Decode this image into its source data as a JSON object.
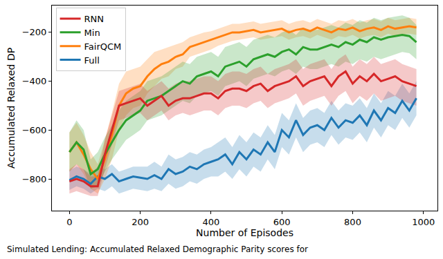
{
  "chart_data": {
    "type": "line",
    "x_label": "Number of Episodes",
    "y_label": "Accumulated Relaxed DP",
    "annotations": [
      {
        "text": "Simulated Lending: Accumulated Relaxed Demographic Parity scores for"
      }
    ],
    "xlim": [
      -49.5,
      1039.5
    ],
    "xticks": [
      0,
      200,
      400,
      600,
      800,
      1000
    ],
    "ylim": [
      -930,
      -90
    ],
    "yticks": [
      -800,
      -600,
      -400,
      -200
    ],
    "grid": false,
    "legend": "upper left",
    "x": [
      0,
      20,
      40,
      60,
      80,
      100,
      120,
      140,
      160,
      180,
      200,
      220,
      240,
      260,
      280,
      300,
      320,
      340,
      360,
      380,
      400,
      420,
      440,
      460,
      480,
      500,
      520,
      540,
      560,
      580,
      600,
      620,
      640,
      660,
      680,
      700,
      720,
      740,
      760,
      780,
      800,
      820,
      840,
      860,
      880,
      900,
      920,
      940,
      960,
      980
    ],
    "series": [
      {
        "name": "Full",
        "color": "#1f77b4",
        "values": [
          -805,
          -790,
          -800,
          -820,
          -790,
          -800,
          -780,
          -810,
          -800,
          -790,
          -795,
          -800,
          -785,
          -800,
          -760,
          -780,
          -770,
          -750,
          -760,
          -740,
          -730,
          -720,
          -700,
          -740,
          -690,
          -720,
          -680,
          -700,
          -650,
          -690,
          -600,
          -630,
          -560,
          -620,
          -590,
          -580,
          -600,
          -550,
          -590,
          -560,
          -570,
          -540,
          -580,
          -520,
          -560,
          -510,
          -530,
          -480,
          -520,
          -470
        ],
        "lower": [
          -845,
          -830,
          -840,
          -860,
          -840,
          -850,
          -830,
          -860,
          -850,
          -840,
          -845,
          -850,
          -840,
          -850,
          -820,
          -840,
          -830,
          -810,
          -820,
          -800,
          -790,
          -790,
          -770,
          -800,
          -760,
          -790,
          -750,
          -770,
          -720,
          -760,
          -670,
          -700,
          -630,
          -690,
          -660,
          -650,
          -670,
          -620,
          -660,
          -630,
          -640,
          -610,
          -650,
          -590,
          -630,
          -580,
          -600,
          -550,
          -590,
          -540
        ],
        "upper": [
          -765,
          -750,
          -760,
          -780,
          -750,
          -760,
          -740,
          -770,
          -760,
          -750,
          -750,
          -750,
          -730,
          -750,
          -700,
          -720,
          -710,
          -690,
          -700,
          -680,
          -670,
          -650,
          -630,
          -670,
          -620,
          -650,
          -610,
          -630,
          -580,
          -620,
          -530,
          -560,
          -490,
          -550,
          -520,
          -510,
          -530,
          -480,
          -520,
          -490,
          -500,
          -470,
          -510,
          -450,
          -490,
          -440,
          -460,
          -410,
          -450,
          -400
        ]
      },
      {
        "name": "FairQCM",
        "color": "#ff7f0e",
        "values": [
          -690,
          -650,
          -700,
          -760,
          -800,
          -720,
          -620,
          -500,
          -450,
          -430,
          -420,
          -380,
          -350,
          -330,
          -320,
          -300,
          -290,
          -260,
          -250,
          -240,
          -230,
          -220,
          -210,
          -200,
          -200,
          -195,
          -190,
          -200,
          -195,
          -190,
          -185,
          -200,
          -190,
          -185,
          -195,
          -180,
          -190,
          -200,
          -185,
          -190,
          -180,
          -195,
          -185,
          -180,
          -190,
          -175,
          -185,
          -180,
          -175,
          -180
        ],
        "lower": [
          -770,
          -740,
          -780,
          -840,
          -860,
          -800,
          -720,
          -600,
          -540,
          -510,
          -500,
          -450,
          -420,
          -390,
          -380,
          -350,
          -340,
          -300,
          -290,
          -280,
          -270,
          -255,
          -245,
          -235,
          -230,
          -225,
          -220,
          -230,
          -225,
          -220,
          -215,
          -230,
          -220,
          -215,
          -225,
          -210,
          -220,
          -230,
          -215,
          -220,
          -210,
          -225,
          -215,
          -210,
          -220,
          -205,
          -215,
          -210,
          -205,
          -210
        ],
        "upper": [
          -610,
          -570,
          -620,
          -690,
          -740,
          -640,
          -530,
          -410,
          -360,
          -350,
          -340,
          -310,
          -280,
          -270,
          -260,
          -250,
          -240,
          -220,
          -210,
          -200,
          -195,
          -185,
          -175,
          -165,
          -165,
          -160,
          -155,
          -165,
          -160,
          -155,
          -150,
          -165,
          -155,
          -150,
          -160,
          -145,
          -155,
          -165,
          -150,
          -155,
          -145,
          -160,
          -150,
          -145,
          -155,
          -140,
          -150,
          -145,
          -140,
          -145
        ]
      },
      {
        "name": "Min",
        "color": "#2ca02c",
        "values": [
          -690,
          -650,
          -680,
          -780,
          -760,
          -700,
          -650,
          -600,
          -560,
          -540,
          -520,
          -480,
          -470,
          -460,
          -440,
          -420,
          -400,
          -410,
          -380,
          -370,
          -360,
          -380,
          -340,
          -330,
          -320,
          -340,
          -310,
          -300,
          -290,
          -300,
          -280,
          -270,
          -290,
          -260,
          -270,
          -270,
          -260,
          -250,
          -260,
          -240,
          -250,
          -230,
          -240,
          -220,
          -230,
          -220,
          -215,
          -210,
          -215,
          -240
        ],
        "lower": [
          -770,
          -740,
          -760,
          -840,
          -830,
          -770,
          -720,
          -680,
          -640,
          -620,
          -600,
          -560,
          -550,
          -540,
          -520,
          -500,
          -480,
          -490,
          -460,
          -450,
          -440,
          -460,
          -420,
          -410,
          -400,
          -420,
          -390,
          -380,
          -370,
          -380,
          -360,
          -350,
          -370,
          -340,
          -350,
          -350,
          -340,
          -330,
          -340,
          -320,
          -330,
          -310,
          -320,
          -300,
          -310,
          -300,
          -290,
          -280,
          -285,
          -310
        ],
        "upper": [
          -610,
          -560,
          -600,
          -720,
          -690,
          -630,
          -580,
          -520,
          -480,
          -460,
          -440,
          -400,
          -390,
          -380,
          -360,
          -340,
          -320,
          -330,
          -300,
          -290,
          -280,
          -300,
          -260,
          -250,
          -240,
          -260,
          -230,
          -220,
          -210,
          -220,
          -200,
          -190,
          -210,
          -180,
          -190,
          -190,
          -180,
          -170,
          -180,
          -160,
          -170,
          -150,
          -160,
          -140,
          -150,
          -140,
          -135,
          -130,
          -140,
          -170
        ]
      },
      {
        "name": "RNN",
        "color": "#d62728",
        "values": [
          -810,
          -800,
          -810,
          -830,
          -830,
          -700,
          -600,
          -500,
          -490,
          -480,
          -470,
          -500,
          -480,
          -460,
          -500,
          -480,
          -470,
          -470,
          -460,
          -450,
          -450,
          -470,
          -440,
          -430,
          -430,
          -440,
          -420,
          -410,
          -440,
          -420,
          -410,
          -400,
          -380,
          -420,
          -400,
          -390,
          -380,
          -420,
          -380,
          -360,
          -410,
          -380,
          -400,
          -370,
          -400,
          -390,
          -380,
          -400,
          -410,
          -420
        ],
        "lower": [
          -860,
          -850,
          -860,
          -870,
          -870,
          -760,
          -660,
          -560,
          -550,
          -540,
          -530,
          -560,
          -540,
          -520,
          -560,
          -540,
          -530,
          -540,
          -530,
          -520,
          -520,
          -540,
          -510,
          -500,
          -500,
          -510,
          -490,
          -480,
          -510,
          -490,
          -480,
          -470,
          -450,
          -500,
          -480,
          -470,
          -460,
          -500,
          -460,
          -440,
          -490,
          -460,
          -480,
          -450,
          -480,
          -470,
          -460,
          -480,
          -490,
          -500
        ],
        "upper": [
          -760,
          -740,
          -760,
          -790,
          -790,
          -640,
          -540,
          -440,
          -430,
          -420,
          -410,
          -440,
          -420,
          -400,
          -430,
          -410,
          -400,
          -400,
          -390,
          -380,
          -380,
          -400,
          -370,
          -360,
          -360,
          -370,
          -350,
          -340,
          -370,
          -350,
          -340,
          -330,
          -310,
          -350,
          -330,
          -320,
          -310,
          -350,
          -310,
          -290,
          -340,
          -310,
          -330,
          -300,
          -330,
          -320,
          -310,
          -330,
          -340,
          -350
        ]
      }
    ]
  }
}
